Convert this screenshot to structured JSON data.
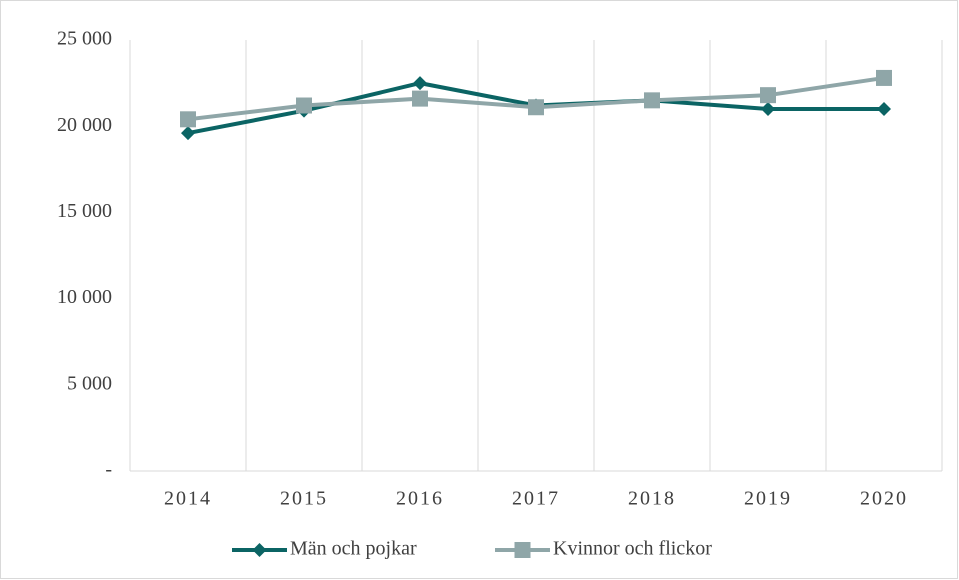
{
  "chart_data": {
    "type": "line",
    "categories": [
      "2014",
      "2015",
      "2016",
      "2017",
      "2018",
      "2019",
      "2020"
    ],
    "series": [
      {
        "name": "Män och pojkar",
        "color": "#0b6464",
        "marker": "diamond",
        "values": [
          19600,
          20900,
          22500,
          21200,
          21500,
          21000,
          21000
        ]
      },
      {
        "name": "Kvinnor och flickor",
        "color": "#8fa6a8",
        "marker": "square",
        "values": [
          20400,
          21200,
          21600,
          21100,
          21500,
          21800,
          22800
        ]
      }
    ],
    "ylim": [
      0,
      25000
    ],
    "yticks": [
      {
        "value": 0,
        "label": "-"
      },
      {
        "value": 5000,
        "label": "5 000"
      },
      {
        "value": 10000,
        "label": "10 000"
      },
      {
        "value": 15000,
        "label": "15 000"
      },
      {
        "value": 20000,
        "label": "20 000"
      },
      {
        "value": 25000,
        "label": "25 000"
      }
    ],
    "grid": "x",
    "legend": "bottom"
  }
}
